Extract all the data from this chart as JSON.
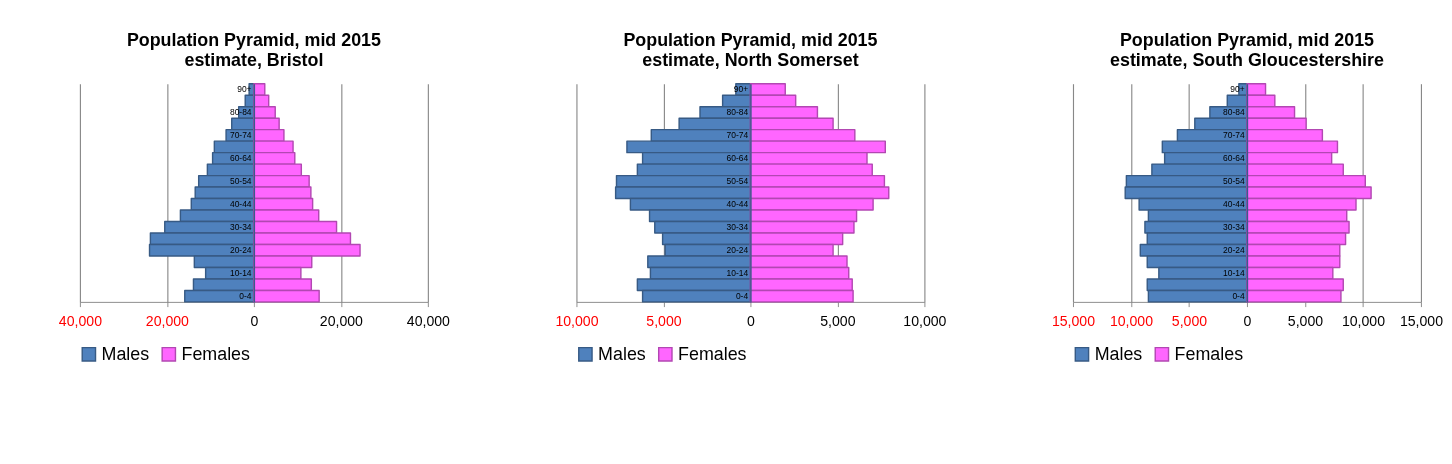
{
  "chart_data": [
    {
      "type": "bar",
      "orientation": "horizontal",
      "stacked": true,
      "title": "Population Pyramid, mid 2015 estimate, Bristol",
      "categories": [
        "90+",
        null,
        "80-84",
        null,
        "70-74",
        null,
        "60-64",
        null,
        "50-54",
        null,
        "40-44",
        null,
        "30-34",
        null,
        "20-24",
        null,
        "10-14",
        null,
        "0-4"
      ],
      "series": [
        {
          "name": "Males",
          "color": "#4f81bd",
          "values": [
            -1100,
            -2000,
            -3500,
            -5100,
            -6400,
            -9100,
            -9500,
            -10700,
            -12700,
            -13500,
            -14400,
            -16900,
            -20500,
            -23800,
            -24000,
            -13700,
            -11100,
            -13900,
            -15900
          ]
        },
        {
          "name": "Females",
          "color": "#ff66ff",
          "values": [
            2500,
            3400,
            4900,
            5800,
            6900,
            9000,
            9400,
            10900,
            12700,
            13100,
            13500,
            14900,
            19000,
            22200,
            24400,
            13300,
            10800,
            13200,
            15000
          ]
        }
      ],
      "xlim": [
        -40000,
        40000
      ],
      "xticks": [
        {
          "value": -40000,
          "label": "40,000"
        },
        {
          "value": -20000,
          "label": "20,000"
        },
        0,
        {
          "value": 20000,
          "label": "20,000"
        },
        {
          "value": 40000,
          "label": "40,000"
        }
      ],
      "grid": "x",
      "legend": "bottom"
    },
    {
      "type": "bar",
      "orientation": "horizontal",
      "stacked": true,
      "title": "Population Pyramid, mid 2015 estimate, North Somerset",
      "categories": [
        "90+",
        null,
        "80-84",
        null,
        "70-74",
        null,
        "60-64",
        null,
        "50-54",
        null,
        "40-44",
        null,
        "30-34",
        null,
        "20-24",
        null,
        "10-14",
        null,
        "0-4"
      ],
      "series": [
        {
          "name": "Males",
          "color": "#4f81bd",
          "values": [
            -840,
            -1600,
            -2900,
            -4100,
            -5700,
            -7100,
            -6200,
            -6500,
            -7700,
            -7750,
            -6900,
            -5800,
            -5500,
            -5050,
            -4900,
            -5900,
            -5750,
            -6500,
            -6200
          ]
        },
        {
          "name": "Females",
          "color": "#ff66ff",
          "values": [
            2000,
            2600,
            3850,
            4750,
            6000,
            7750,
            6700,
            7000,
            7700,
            7950,
            7050,
            6100,
            5950,
            5300,
            4750,
            5550,
            5650,
            5850,
            5900
          ]
        }
      ],
      "xlim": [
        -10000,
        10000
      ],
      "xticks": [
        {
          "value": -10000,
          "label": "10,000"
        },
        {
          "value": -5000,
          "label": "5,000"
        },
        0,
        {
          "value": 5000,
          "label": "5,000"
        },
        {
          "value": 10000,
          "label": "10,000"
        }
      ],
      "grid": "x",
      "legend": "bottom"
    },
    {
      "type": "bar",
      "orientation": "horizontal",
      "stacked": true,
      "title": "Population Pyramid, mid 2015 estimate, South Gloucestershire",
      "categories": [
        "90+",
        null,
        "80-84",
        null,
        "70-74",
        null,
        "60-64",
        null,
        "50-54",
        null,
        "40-44",
        null,
        "30-34",
        null,
        "20-24",
        null,
        "10-14",
        null,
        "0-4"
      ],
      "series": [
        {
          "name": "Males",
          "color": "#4f81bd",
          "values": [
            -700,
            -1700,
            -3200,
            -4500,
            -6000,
            -7300,
            -7100,
            -8200,
            -10400,
            -10500,
            -9300,
            -8500,
            -8800,
            -8600,
            -9200,
            -8600,
            -7600,
            -8600,
            -8500
          ]
        },
        {
          "name": "Females",
          "color": "#ff66ff",
          "values": [
            1600,
            2400,
            4100,
            5100,
            6500,
            7800,
            7300,
            8300,
            10200,
            10700,
            9400,
            8600,
            8800,
            8500,
            8000,
            8000,
            7400,
            8300,
            8100
          ]
        }
      ],
      "xlim": [
        -15000,
        15000
      ],
      "xticks": [
        {
          "value": -15000,
          "label": "15,000"
        },
        {
          "value": -10000,
          "label": "10,000"
        },
        {
          "value": -5000,
          "label": "5,000"
        },
        0,
        {
          "value": 5000,
          "label": "5,000"
        },
        {
          "value": 10000,
          "label": "10,000"
        },
        {
          "value": 15000,
          "label": "15,000"
        }
      ],
      "grid": "x",
      "legend": "bottom"
    }
  ]
}
